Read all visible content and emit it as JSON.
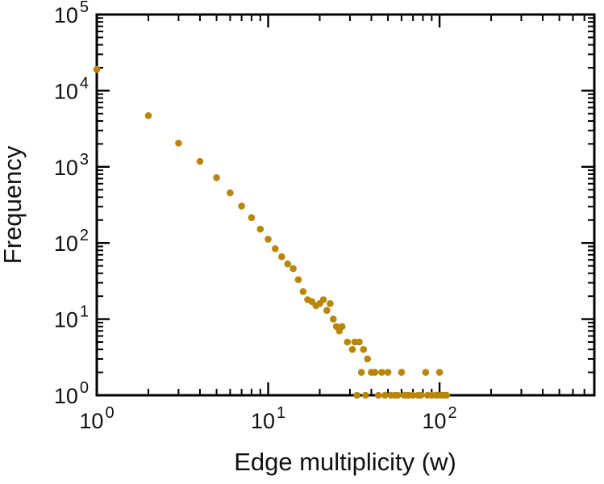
{
  "chart_data": {
    "type": "scatter",
    "title": "",
    "xlabel": "Edge multiplicity (w)",
    "ylabel": "Frequency",
    "x_scale": "log",
    "y_scale": "log",
    "xlim": [
      1,
      800
    ],
    "ylim": [
      1,
      100000
    ],
    "x_tick_exponents": [
      0,
      1,
      2
    ],
    "y_tick_exponents": [
      0,
      1,
      2,
      3,
      4,
      5
    ],
    "tick_label_base": "10",
    "grid": false,
    "legend": "none",
    "marker_color": "#b8860b",
    "frame_color": "#000000",
    "points": [
      [
        1,
        19000
      ],
      [
        2,
        4700
      ],
      [
        3,
        2050
      ],
      [
        4,
        1180
      ],
      [
        5,
        720
      ],
      [
        6,
        455
      ],
      [
        7,
        305
      ],
      [
        8,
        215
      ],
      [
        9,
        152
      ],
      [
        10,
        112
      ],
      [
        11,
        84
      ],
      [
        12,
        66
      ],
      [
        13,
        53
      ],
      [
        14,
        46
      ],
      [
        15,
        33
      ],
      [
        16,
        23
      ],
      [
        17,
        18
      ],
      [
        18,
        17
      ],
      [
        19,
        15
      ],
      [
        20,
        16
      ],
      [
        21,
        18
      ],
      [
        22,
        13
      ],
      [
        23,
        16
      ],
      [
        24,
        10
      ],
      [
        25,
        8
      ],
      [
        26,
        7
      ],
      [
        27,
        8
      ],
      [
        29,
        5
      ],
      [
        31,
        4
      ],
      [
        32,
        5
      ],
      [
        33,
        1
      ],
      [
        34,
        5
      ],
      [
        35,
        2
      ],
      [
        36,
        4
      ],
      [
        37,
        1
      ],
      [
        38,
        3
      ],
      [
        40,
        2
      ],
      [
        42,
        2
      ],
      [
        44,
        1
      ],
      [
        46,
        2
      ],
      [
        48,
        1
      ],
      [
        50,
        2
      ],
      [
        52,
        1
      ],
      [
        55,
        1
      ],
      [
        57,
        1
      ],
      [
        60,
        2
      ],
      [
        62,
        1
      ],
      [
        64,
        1
      ],
      [
        66,
        1
      ],
      [
        70,
        1
      ],
      [
        75,
        1
      ],
      [
        78,
        1
      ],
      [
        83,
        2
      ],
      [
        85,
        1
      ],
      [
        90,
        1
      ],
      [
        95,
        1
      ],
      [
        98,
        1
      ],
      [
        100,
        2
      ],
      [
        103,
        1
      ],
      [
        106,
        1
      ],
      [
        110,
        1
      ]
    ]
  }
}
